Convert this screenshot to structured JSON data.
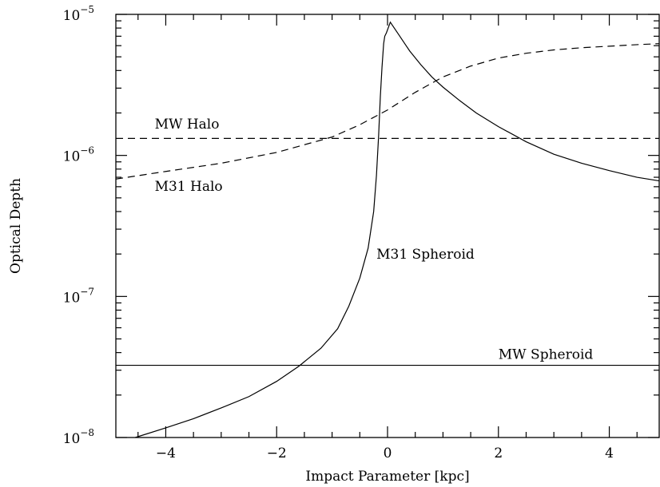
{
  "chart_data": {
    "type": "line",
    "title": "",
    "xlabel": "Impact Parameter [kpc]",
    "ylabel": "Optical Depth",
    "xlim": [
      -4.9,
      4.9
    ],
    "ylim": [
      1e-08,
      1e-05
    ],
    "yscale": "log",
    "grid": false,
    "legend": "none",
    "x_ticks": [
      -4,
      -2,
      0,
      2,
      4
    ],
    "x_tick_labels": [
      "−4",
      "−2",
      "0",
      "2",
      "4"
    ],
    "y_ticks": [
      {
        "value": 1e-08,
        "base": "10",
        "exp": "−8"
      },
      {
        "value": 1e-07,
        "base": "10",
        "exp": "−7"
      },
      {
        "value": 1e-06,
        "base": "10",
        "exp": "−6"
      },
      {
        "value": 1e-05,
        "base": "10",
        "exp": "−5"
      }
    ],
    "series": [
      {
        "name": "M31 Spheroid",
        "style": "solid",
        "x": [
          -4.55,
          -4.0,
          -3.5,
          -3.0,
          -2.5,
          -2.0,
          -1.6,
          -1.2,
          -0.9,
          -0.7,
          -0.5,
          -0.35,
          -0.25,
          -0.2,
          -0.16,
          -0.13,
          -0.1,
          -0.07,
          -0.05,
          -0.02,
          0.05,
          0.2,
          0.4,
          0.6,
          0.8,
          1.0,
          1.3,
          1.6,
          2.0,
          2.5,
          3.0,
          3.5,
          4.0,
          4.5,
          4.9
        ],
        "y": [
          1e-08,
          1.17e-08,
          1.36e-08,
          1.62e-08,
          1.95e-08,
          2.5e-08,
          3.2e-08,
          4.3e-08,
          5.9e-08,
          8.5e-08,
          1.35e-07,
          2.2e-07,
          4e-07,
          7.2e-07,
          1.4e-06,
          2.6e-06,
          4.2e-06,
          6.2e-06,
          7e-06,
          7.4e-06,
          8.8e-06,
          7.2e-06,
          5.5e-06,
          4.4e-06,
          3.6e-06,
          3.05e-06,
          2.45e-06,
          2e-06,
          1.6e-06,
          1.25e-06,
          1.02e-06,
          8.8e-07,
          7.8e-07,
          7e-07,
          6.6e-07
        ]
      },
      {
        "name": "M31 Halo",
        "style": "dashed",
        "x": [
          -4.9,
          -4.0,
          -3.0,
          -2.0,
          -1.0,
          -0.5,
          0.0,
          0.5,
          1.0,
          1.5,
          2.0,
          2.5,
          3.0,
          3.5,
          4.0,
          4.5,
          4.9
        ],
        "y": [
          6.8e-07,
          7.7e-07,
          8.8e-07,
          1.05e-06,
          1.35e-06,
          1.65e-06,
          2.1e-06,
          2.8e-06,
          3.6e-06,
          4.3e-06,
          4.9e-06,
          5.3e-06,
          5.6e-06,
          5.8e-06,
          5.95e-06,
          6.1e-06,
          6.2e-06
        ]
      },
      {
        "name": "MW Halo",
        "style": "dashed",
        "x": [
          -4.9,
          4.9
        ],
        "y": [
          1.32e-06,
          1.32e-06
        ]
      },
      {
        "name": "MW Spheroid",
        "style": "solid",
        "x": [
          -4.9,
          4.9
        ],
        "y": [
          3.25e-08,
          3.25e-08
        ]
      }
    ],
    "annotations": [
      {
        "text": "MW Halo",
        "x": -4.2,
        "y": 1.55e-06
      },
      {
        "text": "M31 Halo",
        "x": -4.2,
        "y": 5.6e-07
      },
      {
        "text": "M31 Spheroid",
        "x": -0.2,
        "y": 1.85e-07
      },
      {
        "text": "MW Spheroid",
        "x": 2.0,
        "y": 3.6e-08
      }
    ]
  }
}
